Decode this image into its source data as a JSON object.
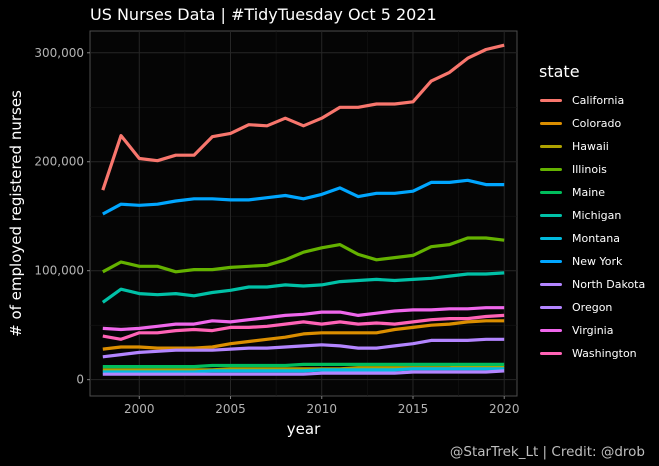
{
  "chart_title": "US Nurses Data | #TidyTuesday Oct 5 2021",
  "caption": "@StarTrek_Lt | Credit: @drob",
  "legend_title": "state",
  "chart_data": {
    "type": "line",
    "title": "US Nurses Data | #TidyTuesday Oct 5 2021",
    "xlabel": "year",
    "ylabel": "# of employed registered nurses",
    "xlim": [
      1997.3,
      2020.7
    ],
    "ylim": [
      -15000,
      320000
    ],
    "x_ticks": [
      2000,
      2005,
      2010,
      2015,
      2020
    ],
    "y_ticks": [
      0,
      100000,
      200000,
      300000
    ],
    "y_tick_labels": [
      "0",
      "100,000",
      "200,000",
      "300,000"
    ],
    "grid": true,
    "legend_position": "right",
    "x": [
      1998,
      1999,
      2000,
      2001,
      2002,
      2003,
      2004,
      2005,
      2006,
      2007,
      2008,
      2009,
      2010,
      2011,
      2012,
      2013,
      2014,
      2015,
      2016,
      2017,
      2018,
      2019,
      2020
    ],
    "series": [
      {
        "name": "California",
        "color": "#F8766D",
        "values": [
          174000,
          224000,
          203000,
          201000,
          206000,
          206000,
          223000,
          226000,
          234000,
          233000,
          240000,
          233000,
          240000,
          250000,
          250000,
          253000,
          253000,
          255000,
          274000,
          282000,
          295000,
          303000,
          307000
        ]
      },
      {
        "name": "Colorado",
        "color": "#DB8E00",
        "values": [
          28000,
          30000,
          30000,
          29000,
          29000,
          29000,
          30000,
          33000,
          35000,
          37000,
          39000,
          42000,
          43000,
          43000,
          43000,
          43000,
          46000,
          48000,
          50000,
          51000,
          53000,
          54000,
          54000
        ]
      },
      {
        "name": "Hawaii",
        "color": "#AEA200",
        "values": [
          9000,
          9000,
          9000,
          9000,
          9000,
          9000,
          9000,
          10000,
          10000,
          10000,
          10000,
          10000,
          10000,
          10000,
          11000,
          11000,
          11000,
          11000,
          11000,
          11000,
          12000,
          12000,
          12000
        ]
      },
      {
        "name": "Illinois",
        "color": "#64B200",
        "values": [
          99000,
          108000,
          104000,
          104000,
          99000,
          101000,
          101000,
          103000,
          104000,
          105000,
          110000,
          117000,
          121000,
          124000,
          115000,
          110000,
          112000,
          114000,
          122000,
          124000,
          130000,
          130000,
          128000
        ]
      },
      {
        "name": "Maine",
        "color": "#00BD5C",
        "values": [
          12000,
          12000,
          12000,
          12000,
          12000,
          12000,
          13000,
          13000,
          13000,
          13000,
          13000,
          14000,
          14000,
          14000,
          14000,
          14000,
          14000,
          14000,
          14000,
          14000,
          14000,
          14000,
          14000
        ]
      },
      {
        "name": "Michigan",
        "color": "#00C1A7",
        "values": [
          71000,
          83000,
          79000,
          78000,
          79000,
          77000,
          80000,
          82000,
          85000,
          85000,
          87000,
          86000,
          87000,
          90000,
          91000,
          92000,
          91000,
          92000,
          93000,
          95000,
          97000,
          97000,
          98000
        ]
      },
      {
        "name": "Montana",
        "color": "#00BADE",
        "values": [
          7000,
          7000,
          7000,
          7000,
          7000,
          7000,
          8000,
          8000,
          8000,
          8000,
          8000,
          8000,
          9000,
          9000,
          9000,
          9000,
          9000,
          10000,
          10000,
          10000,
          10000,
          10000,
          10000
        ]
      },
      {
        "name": "New York",
        "color": "#00A6FF",
        "values": [
          152000,
          161000,
          160000,
          161000,
          164000,
          166000,
          166000,
          165000,
          165000,
          167000,
          169000,
          166000,
          170000,
          176000,
          168000,
          171000,
          171000,
          173000,
          181000,
          181000,
          183000,
          179000,
          179000
        ]
      },
      {
        "name": "North Dakota",
        "color": "#B385FF",
        "values": [
          5000,
          5000,
          5000,
          5000,
          5000,
          5000,
          5000,
          5000,
          5000,
          5000,
          5000,
          5000,
          6000,
          6000,
          6000,
          6000,
          6000,
          7000,
          7000,
          7000,
          7000,
          7000,
          8000
        ]
      },
      {
        "name": "Oregon",
        "color": "#B385FF",
        "values": [
          21000,
          23000,
          25000,
          26000,
          27000,
          27000,
          27000,
          28000,
          29000,
          29000,
          30000,
          31000,
          32000,
          31000,
          29000,
          29000,
          31000,
          33000,
          36000,
          36000,
          36000,
          37000,
          37000
        ]
      },
      {
        "name": "Virginia",
        "color": "#EF67EB",
        "values": [
          47000,
          46000,
          47000,
          49000,
          51000,
          51000,
          54000,
          53000,
          55000,
          57000,
          59000,
          60000,
          62000,
          62000,
          59000,
          61000,
          63000,
          64000,
          64000,
          65000,
          65000,
          66000,
          66000
        ]
      },
      {
        "name": "Washington",
        "color": "#FF63B6",
        "values": [
          40000,
          37000,
          43000,
          43000,
          45000,
          46000,
          45000,
          48000,
          48000,
          49000,
          51000,
          53000,
          51000,
          53000,
          51000,
          52000,
          51000,
          53000,
          55000,
          56000,
          56000,
          58000,
          59000
        ]
      }
    ]
  }
}
